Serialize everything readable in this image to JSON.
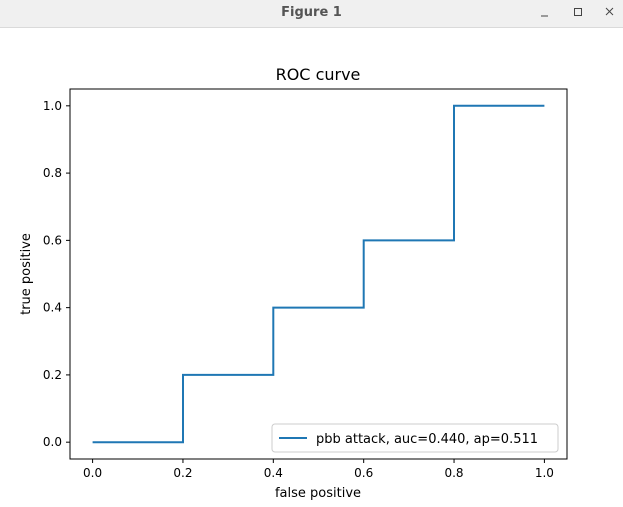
{
  "window": {
    "title": "Figure 1",
    "controls": {
      "minimize_icon": "minimize-icon",
      "maximize_icon": "maximize-icon",
      "close_icon": "close-icon"
    }
  },
  "chart_data": {
    "type": "line",
    "drawstyle": "steps-post",
    "title": "ROC curve",
    "xlabel": "false positive",
    "ylabel": "true positive",
    "xlim": [
      -0.05,
      1.05
    ],
    "ylim": [
      -0.05,
      1.05
    ],
    "xticks": [
      0.0,
      0.2,
      0.4,
      0.6,
      0.8,
      1.0
    ],
    "xtick_labels": [
      "0.0",
      "0.2",
      "0.4",
      "0.6",
      "0.8",
      "1.0"
    ],
    "yticks": [
      0.0,
      0.2,
      0.4,
      0.6,
      0.8,
      1.0
    ],
    "ytick_labels": [
      "0.0",
      "0.2",
      "0.4",
      "0.6",
      "0.8",
      "1.0"
    ],
    "grid": false,
    "legend_position": "lower-right",
    "series": [
      {
        "name": "pbb attack, auc=0.440, ap=0.511",
        "color": "#1f77b4",
        "x": [
          0.0,
          0.2,
          0.2,
          0.4,
          0.4,
          0.6,
          0.6,
          0.8,
          0.8,
          1.0
        ],
        "y": [
          0.0,
          0.0,
          0.2,
          0.2,
          0.4,
          0.4,
          0.6,
          0.6,
          1.0,
          1.0
        ]
      }
    ]
  }
}
